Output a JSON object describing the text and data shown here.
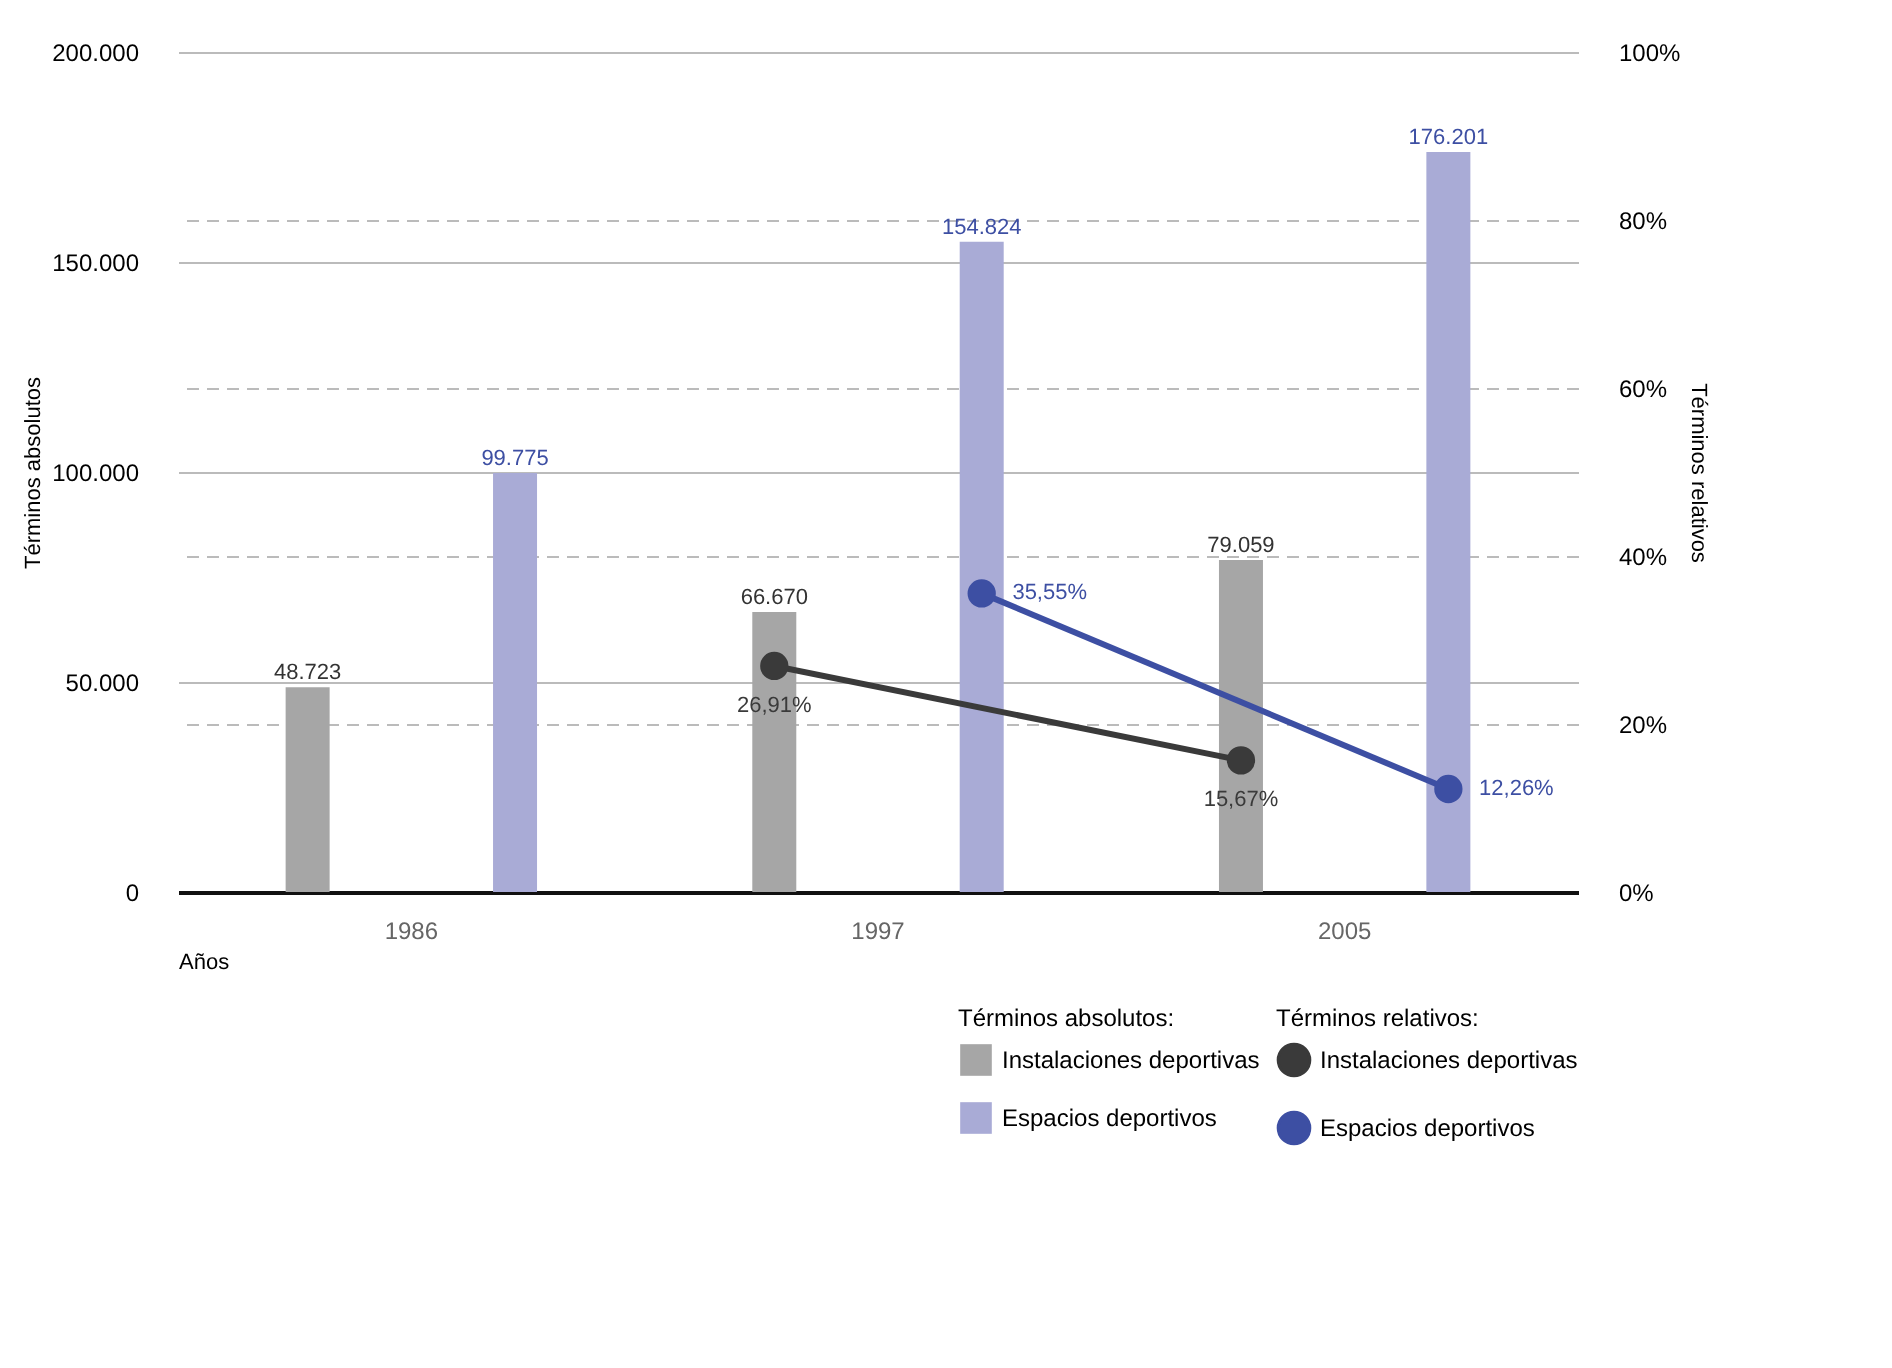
{
  "chart_data": {
    "type": "bar",
    "xlabel": "Años",
    "ylabel": "Términos absolutos",
    "y2label": "Términos relativos",
    "legend_title": "Términos absolutos:",
    "annotations": [
      "Términos relativos:"
    ],
    "categories": [
      "1986",
      "1997",
      "2005"
    ],
    "series": [
      {
        "name": "Instalaciones deportivas",
        "color": "#a6a6a6",
        "values": [
          48723,
          66670,
          79059
        ],
        "value_labels": [
          "48.723",
          "66.670",
          "79.059"
        ]
      },
      {
        "name": "Espacios deportivos",
        "color": "#a9abd6",
        "values": [
          99775,
          154824,
          176201
        ],
        "value_labels": [
          "99.775",
          "154.824",
          "176.201"
        ]
      },
      {
        "name": "Instalaciones deportivas",
        "type": "line",
        "axis": "y2",
        "color": "#3a3a3a",
        "values": [
          null,
          26.91,
          15.67
        ],
        "value_labels": [
          null,
          "26,91%",
          "15,67%"
        ]
      },
      {
        "name": "Espacios deportivos",
        "type": "line",
        "axis": "y2",
        "color": "#3d4fa3",
        "values": [
          null,
          35.55,
          12.26
        ],
        "value_labels": [
          null,
          "35,55%",
          "12,26%"
        ]
      }
    ],
    "ylim": [
      0,
      200000
    ],
    "yticks": [
      0,
      {
        "value": 50000,
        "label": "50.000"
      },
      {
        "value": 100000,
        "label": "100.000"
      },
      {
        "value": 150000,
        "label": "150.000"
      },
      {
        "value": 200000,
        "label": "200.000"
      }
    ],
    "y2lim": [
      0,
      100
    ],
    "y2ticks": [
      {
        "value": 0,
        "label": "0%"
      },
      {
        "value": 20,
        "label": "20%"
      },
      {
        "value": 40,
        "label": "40%"
      },
      {
        "value": 60,
        "label": "60%"
      },
      {
        "value": 80,
        "label": "80%"
      },
      {
        "value": 100,
        "label": "100%"
      }
    ],
    "grid": true,
    "legend": "bottom right",
    "marker": "circle",
    "line_style": "solid"
  }
}
